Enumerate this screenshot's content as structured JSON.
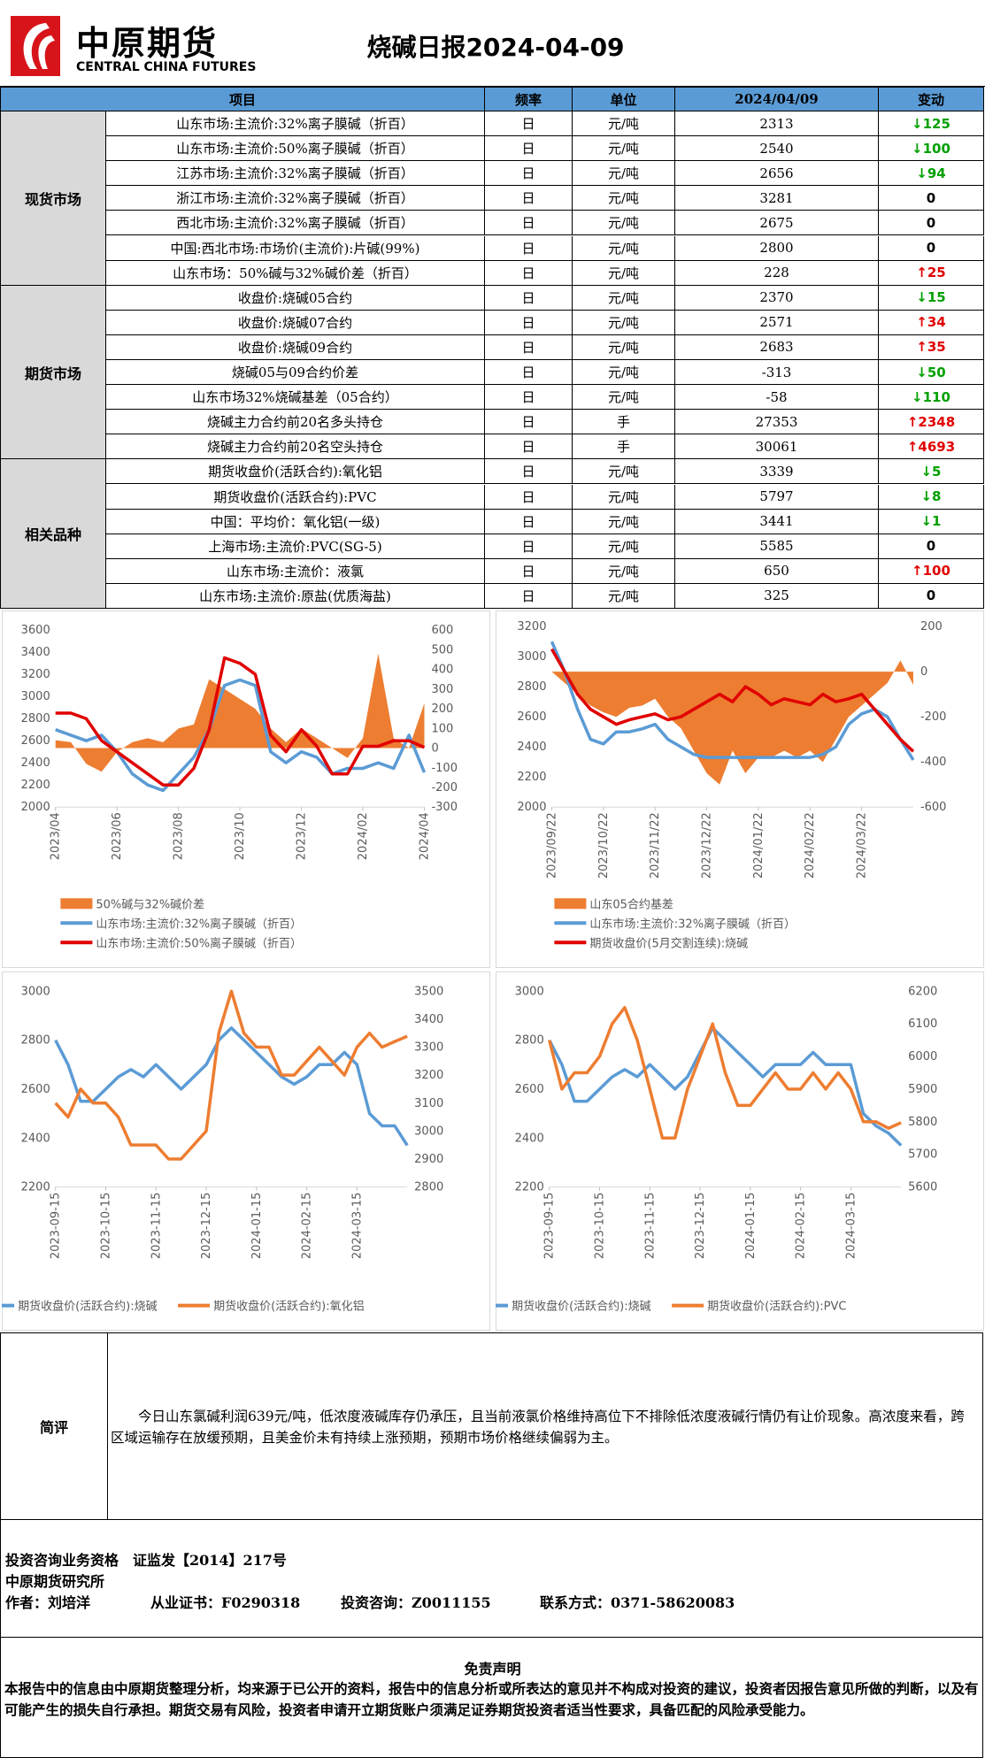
{
  "header": {
    "logo_cn": "中原期货",
    "logo_en": "CENTRAL CHINA FUTURES",
    "title": "烧碱日报2024-04-09"
  },
  "table": {
    "columns": [
      "项目",
      "频率",
      "单位",
      "2024/04/09",
      "变动"
    ],
    "groups": [
      {
        "label": "现货市场",
        "rows": [
          [
            "山东市场:主流价:32%离子膜碱（折百）",
            "日",
            "元/吨",
            2313,
            "↓125"
          ],
          [
            "山东市场:主流价:50%离子膜碱（折百）",
            "日",
            "元/吨",
            2540,
            "↓100"
          ],
          [
            "江苏市场:主流价:32%离子膜碱（折百）",
            "日",
            "元/吨",
            2656,
            "↓94"
          ],
          [
            "浙江市场:主流价:32%离子膜碱（折百）",
            "日",
            "元/吨",
            3281,
            "0"
          ],
          [
            "西北市场:主流价:32%离子膜碱（折百）",
            "日",
            "元/吨",
            2675,
            "0"
          ],
          [
            "中国:西北市场:市场价(主流价):片碱(99%)",
            "日",
            "元/吨",
            2800,
            "0"
          ],
          [
            "山东市场：50%碱与32%碱价差（折百）",
            "日",
            "元/吨",
            228,
            "↑25"
          ]
        ]
      },
      {
        "label": "期货市场",
        "rows": [
          [
            "收盘价:烧碱05合约",
            "日",
            "元/吨",
            2370,
            "↓15"
          ],
          [
            "收盘价:烧碱07合约",
            "日",
            "元/吨",
            2571,
            "↑34"
          ],
          [
            "收盘价:烧碱09合约",
            "日",
            "元/吨",
            2683,
            "↑35"
          ],
          [
            "烧碱05与09合约价差",
            "日",
            "元/吨",
            -313,
            "↓50"
          ],
          [
            "山东市场32%烧碱基差（05合约）",
            "日",
            "元/吨",
            -58,
            "↓110"
          ],
          [
            "烧碱主力合约前20名多头持仓",
            "日",
            "手",
            27353,
            "↑2348"
          ],
          [
            "烧碱主力合约前20名空头持仓",
            "日",
            "手",
            30061,
            "↑4693"
          ]
        ]
      },
      {
        "label": "相关品种",
        "rows": [
          [
            "期货收盘价(活跃合约):氧化铝",
            "日",
            "元/吨",
            3339,
            "↓5"
          ],
          [
            "期货收盘价(活跃合约):PVC",
            "日",
            "元/吨",
            5797,
            "↓8"
          ],
          [
            "中国：平均价：氧化铝(一级)",
            "日",
            "元/吨",
            3441,
            "↓1"
          ],
          [
            "上海市场:主流价:PVC(SG-5)",
            "日",
            "元/吨",
            5585,
            "0"
          ],
          [
            "山东市场:主流价：液氯",
            "日",
            "元/吨",
            650,
            "↑100"
          ],
          [
            "山东市场:主流价:原盐(优质海盐)",
            "日",
            "元/吨",
            325,
            "0"
          ]
        ]
      }
    ]
  },
  "chart_data": [
    {
      "type": "line",
      "grid": false,
      "legend": "bottom",
      "categories": [
        "2023/04",
        null,
        null,
        null,
        "2023/06",
        null,
        null,
        null,
        "2023/08",
        null,
        null,
        null,
        "2023/10",
        null,
        null,
        null,
        "2023/12",
        null,
        null,
        null,
        "2024/02",
        null,
        null,
        null,
        "2024/04"
      ],
      "ylim": [
        2000,
        3600
      ],
      "yticks": [
        2000,
        2200,
        2400,
        2600,
        2800,
        3000,
        3200,
        3400,
        3600
      ],
      "y2lim": [
        -300,
        600
      ],
      "y2ticks": [
        -300,
        -200,
        -100,
        0,
        100,
        200,
        300,
        400,
        500,
        600
      ],
      "series": [
        {
          "name": "50%碱与32%碱价差",
          "type": "area",
          "axis": "y2",
          "color": "#ed7d31",
          "values": [
            40,
            30,
            -80,
            -120,
            -20,
            30,
            50,
            30,
            100,
            120,
            350,
            300,
            250,
            200,
            100,
            30,
            100,
            50,
            0,
            -50,
            50,
            480,
            50,
            0,
            228
          ]
        },
        {
          "name": "山东市场:主流价:32%离子膜碱（折百）",
          "type": "line",
          "color": "#5b9bd5",
          "values": [
            2700,
            2650,
            2600,
            2650,
            2500,
            2300,
            2200,
            2150,
            2300,
            2450,
            2700,
            3100,
            3150,
            3100,
            2500,
            2400,
            2500,
            2450,
            2300,
            2350,
            2350,
            2400,
            2350,
            2650,
            2313
          ]
        },
        {
          "name": "山东市场:主流价:50%离子膜碱（折百）",
          "type": "line",
          "color": "#e00000",
          "values": [
            2850,
            2850,
            2800,
            2600,
            2500,
            2400,
            2300,
            2200,
            2200,
            2350,
            2700,
            3350,
            3300,
            3200,
            2650,
            2500,
            2700,
            2550,
            2300,
            2300,
            2550,
            2550,
            2600,
            2600,
            2540
          ]
        }
      ]
    },
    {
      "type": "line",
      "grid": false,
      "legend": "bottom",
      "categories": [
        "2023/09/22",
        null,
        null,
        null,
        "2023/10/22",
        null,
        null,
        null,
        "2023/11/22",
        null,
        null,
        null,
        "2023/12/22",
        null,
        null,
        null,
        "2024/01/22",
        null,
        null,
        null,
        "2024/02/22",
        null,
        null,
        null,
        "2024/03/22",
        null,
        null,
        null,
        null
      ],
      "ylim": [
        2000,
        3200
      ],
      "yticks": [
        2000,
        2200,
        2400,
        2600,
        2800,
        3000,
        3200
      ],
      "y2lim": [
        -600,
        200
      ],
      "y2ticks": [
        -600,
        -400,
        -200,
        0,
        200
      ],
      "series": [
        {
          "name": "山东05合约基差",
          "type": "area",
          "axis": "y2",
          "color": "#ed7d31",
          "values": [
            0,
            -50,
            -100,
            -150,
            -180,
            -200,
            -160,
            -150,
            -120,
            -200,
            -250,
            -350,
            -450,
            -500,
            -350,
            -450,
            -380,
            -380,
            -350,
            -380,
            -350,
            -400,
            -300,
            -200,
            -150,
            -100,
            -50,
            50,
            -58
          ]
        },
        {
          "name": "山东市场:主流价:32%离子膜碱（折百）",
          "type": "line",
          "color": "#5b9bd5",
          "values": [
            3100,
            2900,
            2650,
            2450,
            2420,
            2500,
            2500,
            2520,
            2550,
            2450,
            2400,
            2350,
            2330,
            2330,
            2330,
            2330,
            2330,
            2330,
            2330,
            2330,
            2330,
            2350,
            2400,
            2550,
            2620,
            2650,
            2600,
            2450,
            2313
          ]
        },
        {
          "name": "期货收盘价(5月交割连续):烧碱",
          "type": "line",
          "color": "#e00000",
          "values": [
            3050,
            2900,
            2750,
            2650,
            2600,
            2550,
            2580,
            2600,
            2620,
            2580,
            2600,
            2650,
            2700,
            2750,
            2700,
            2800,
            2750,
            2680,
            2720,
            2700,
            2680,
            2750,
            2700,
            2720,
            2750,
            2650,
            2550,
            2450,
            2370
          ]
        }
      ]
    },
    {
      "type": "line",
      "grid": false,
      "legend": "bottom",
      "categories": [
        "2023-09-15",
        null,
        null,
        null,
        "2023-10-15",
        null,
        null,
        null,
        "2023-11-15",
        null,
        null,
        null,
        "2023-12-15",
        null,
        null,
        null,
        "2024-01-15",
        null,
        null,
        null,
        "2024-02-15",
        null,
        null,
        null,
        "2024-03-15",
        null,
        null,
        null,
        null
      ],
      "ylim": [
        2200,
        3000
      ],
      "yticks": [
        2200,
        2400,
        2600,
        2800,
        3000
      ],
      "y2lim": [
        2800,
        3500
      ],
      "y2ticks": [
        2800,
        2900,
        3000,
        3100,
        3200,
        3300,
        3400,
        3500
      ],
      "series": [
        {
          "name": "期货收盘价(活跃合约):烧碱",
          "type": "line",
          "color": "#5b9bd5",
          "values": [
            2800,
            2700,
            2550,
            2550,
            2600,
            2650,
            2680,
            2650,
            2700,
            2650,
            2600,
            2650,
            2700,
            2800,
            2850,
            2800,
            2750,
            2700,
            2650,
            2620,
            2650,
            2700,
            2700,
            2750,
            2700,
            2500,
            2450,
            2450,
            2370
          ]
        },
        {
          "name": "期货收盘价(活跃合约):氧化铝",
          "type": "line",
          "axis": "y2",
          "color": "#ed7d31",
          "values": [
            3100,
            3050,
            3150,
            3100,
            3100,
            3050,
            2950,
            2950,
            2950,
            2900,
            2900,
            2950,
            3000,
            3350,
            3500,
            3350,
            3300,
            3300,
            3200,
            3200,
            3250,
            3300,
            3250,
            3200,
            3300,
            3350,
            3300,
            3320,
            3339
          ]
        }
      ]
    },
    {
      "type": "line",
      "grid": false,
      "legend": "bottom",
      "categories": [
        "2023-09-15",
        null,
        null,
        null,
        "2023-10-15",
        null,
        null,
        null,
        "2023-11-15",
        null,
        null,
        null,
        "2023-12-15",
        null,
        null,
        null,
        "2024-01-15",
        null,
        null,
        null,
        "2024-02-15",
        null,
        null,
        null,
        "2024-03-15",
        null,
        null,
        null,
        null
      ],
      "ylim": [
        2200,
        3000
      ],
      "yticks": [
        2200,
        2400,
        2600,
        2800,
        3000
      ],
      "y2lim": [
        5600,
        6200
      ],
      "y2ticks": [
        5600,
        5700,
        5800,
        5900,
        6000,
        6100,
        6200
      ],
      "series": [
        {
          "name": "期货收盘价(活跃合约):烧碱",
          "type": "line",
          "color": "#5b9bd5",
          "values": [
            2800,
            2700,
            2550,
            2550,
            2600,
            2650,
            2680,
            2650,
            2700,
            2650,
            2600,
            2650,
            2750,
            2850,
            2800,
            2750,
            2700,
            2650,
            2700,
            2700,
            2700,
            2750,
            2700,
            2700,
            2700,
            2500,
            2450,
            2420,
            2370
          ]
        },
        {
          "name": "期货收盘价(活跃合约):PVC",
          "type": "line",
          "axis": "y2",
          "color": "#ed7d31",
          "values": [
            6050,
            5900,
            5950,
            5950,
            6000,
            6100,
            6150,
            6050,
            5900,
            5750,
            5750,
            5900,
            6000,
            6100,
            5950,
            5850,
            5850,
            5900,
            5950,
            5900,
            5900,
            5950,
            5900,
            5950,
            5900,
            5800,
            5800,
            5780,
            5797
          ]
        }
      ]
    }
  ],
  "comment": {
    "label": "简评",
    "text": "今日山东氯碱利润639元/吨，低浓度液碱库存仍承压，且当前液氯价格维持高位下不排除低浓度液碱行情仍有让价现象。高浓度来看，跨区域运输存在放缓预期，且美金价未有持续上涨预期，预期市场价格继续偏弱为主。"
  },
  "footer": {
    "qualification": "投资咨询业务资格　证监发【2014】217号",
    "institute": "中原期货研究所",
    "author": "作者：刘培洋",
    "certificate": "从业证书：F0290318",
    "consult": "投资咨询：Z0011155",
    "contact": "联系方式：0371-58620083"
  },
  "disclaimer": {
    "title": "免责声明",
    "text": "本报告中的信息由中原期货整理分析，均来源于已公开的资料，报告中的信息分析或所表达的意见并不构成对投资的建议，投资者因报告意见所做的判断，以及有可能产生的损失自行承担。期货交易有风险，投资者申请开立期货账户须满足证券期货投资者适当性要求，具备匹配的风险承受能力。"
  }
}
